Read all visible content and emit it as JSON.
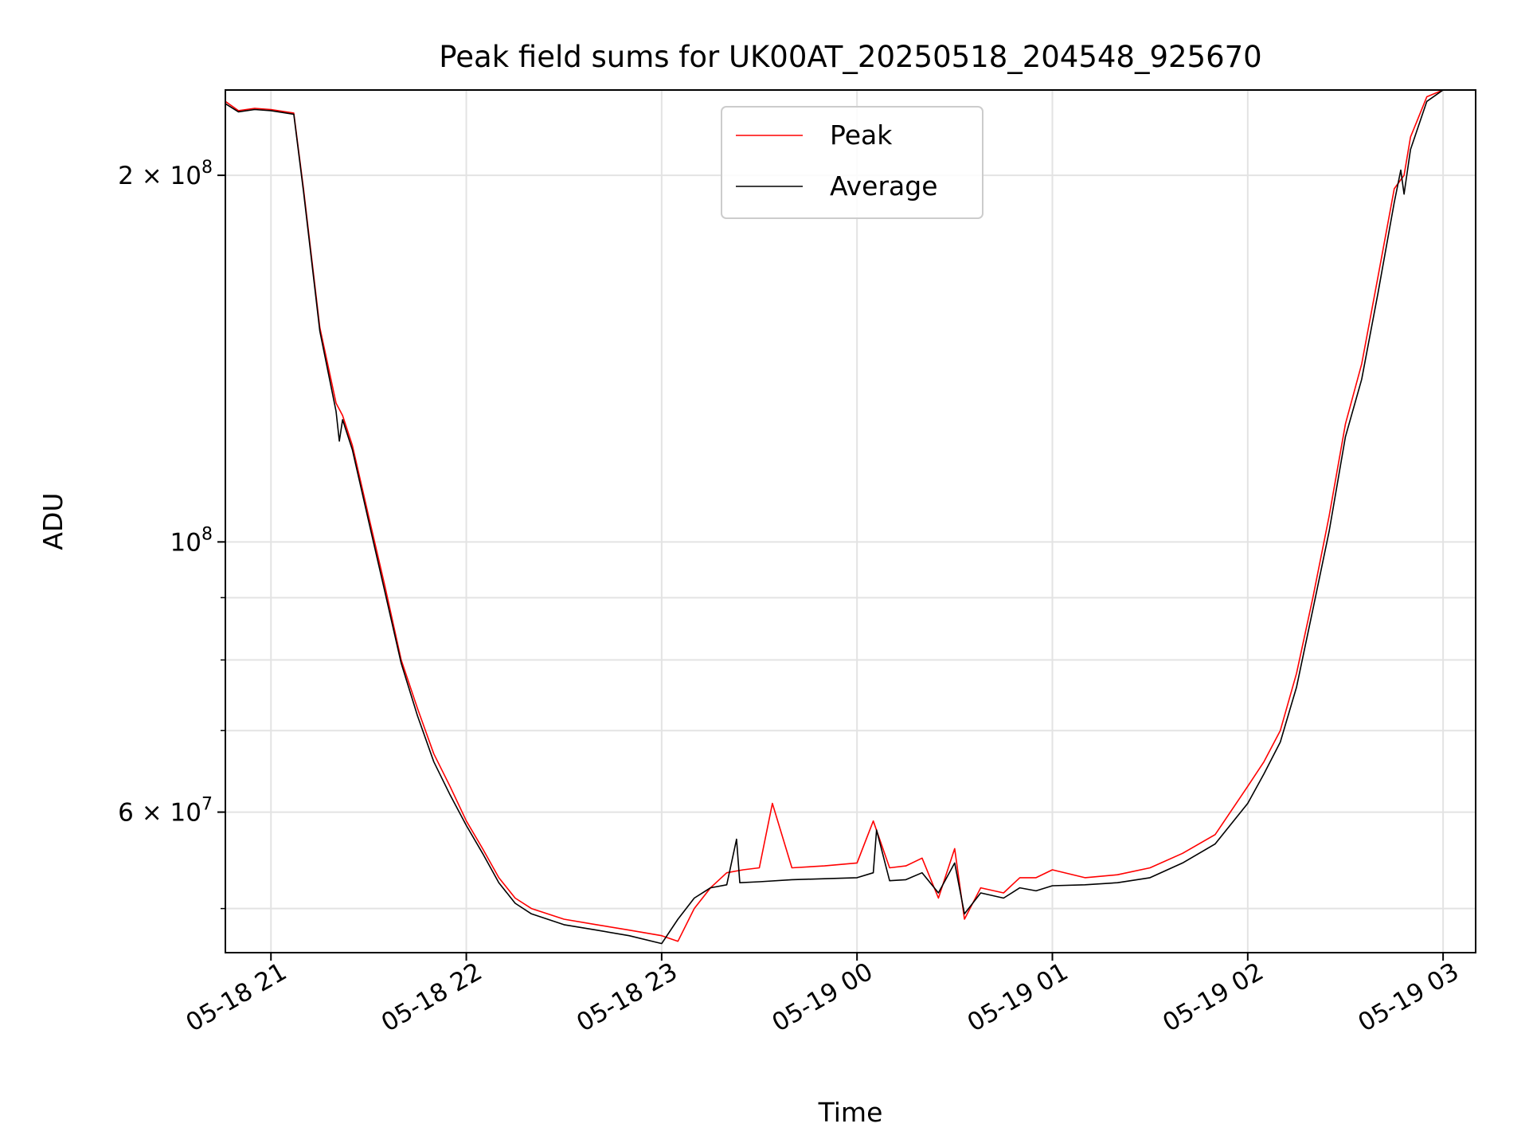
{
  "chart_data": {
    "type": "line",
    "title": "Peak field sums for UK00AT_20250518_204548_925670",
    "xlabel": "Time",
    "ylabel": "ADU",
    "y_scale": "log",
    "grid": true,
    "legend_position": "upper center",
    "xlim": [
      "2025-05-18 20:46",
      "2025-05-19 03:10"
    ],
    "ylim": [
      46000000,
      235000000
    ],
    "x_ticks": [
      {
        "value": "2025-05-18 21:00",
        "label": "05-18 21"
      },
      {
        "value": "2025-05-18 22:00",
        "label": "05-18 22"
      },
      {
        "value": "2025-05-18 23:00",
        "label": "05-18 23"
      },
      {
        "value": "2025-05-19 00:00",
        "label": "05-19 00"
      },
      {
        "value": "2025-05-19 01:00",
        "label": "05-19 01"
      },
      {
        "value": "2025-05-19 02:00",
        "label": "05-19 02"
      },
      {
        "value": "2025-05-19 03:00",
        "label": "05-19 03"
      }
    ],
    "y_major_ticks": [
      {
        "value": 200000000,
        "base": "2 × 10",
        "exp": "8"
      },
      {
        "value": 100000000,
        "base": "10",
        "exp": "8"
      },
      {
        "value": 60000000,
        "base": "6 × 10",
        "exp": "7"
      }
    ],
    "y_minor_ticks": [
      50000000,
      70000000,
      80000000,
      90000000
    ],
    "series": [
      {
        "name": "Peak",
        "color": "#ff0000",
        "x": [
          "2025-05-18 20:46",
          "2025-05-18 20:50",
          "2025-05-18 20:55",
          "2025-05-18 21:00",
          "2025-05-18 21:07",
          "2025-05-18 21:10",
          "2025-05-18 21:15",
          "2025-05-18 21:20",
          "2025-05-18 21:22",
          "2025-05-18 21:25",
          "2025-05-18 21:30",
          "2025-05-18 21:35",
          "2025-05-18 21:40",
          "2025-05-18 21:45",
          "2025-05-18 21:50",
          "2025-05-18 21:55",
          "2025-05-18 22:00",
          "2025-05-18 22:05",
          "2025-05-18 22:10",
          "2025-05-18 22:15",
          "2025-05-18 22:20",
          "2025-05-18 22:30",
          "2025-05-18 22:40",
          "2025-05-18 22:50",
          "2025-05-18 23:00",
          "2025-05-18 23:05",
          "2025-05-18 23:10",
          "2025-05-18 23:15",
          "2025-05-18 23:20",
          "2025-05-18 23:25",
          "2025-05-18 23:30",
          "2025-05-18 23:34",
          "2025-05-18 23:40",
          "2025-05-18 23:50",
          "2025-05-19 00:00",
          "2025-05-19 00:05",
          "2025-05-19 00:10",
          "2025-05-19 00:15",
          "2025-05-19 00:20",
          "2025-05-19 00:25",
          "2025-05-19 00:30",
          "2025-05-19 00:33",
          "2025-05-19 00:38",
          "2025-05-19 00:45",
          "2025-05-19 00:50",
          "2025-05-19 00:55",
          "2025-05-19 01:00",
          "2025-05-19 01:10",
          "2025-05-19 01:20",
          "2025-05-19 01:30",
          "2025-05-19 01:40",
          "2025-05-19 01:50",
          "2025-05-19 02:00",
          "2025-05-19 02:05",
          "2025-05-19 02:10",
          "2025-05-19 02:15",
          "2025-05-19 02:20",
          "2025-05-19 02:25",
          "2025-05-19 02:30",
          "2025-05-19 02:35",
          "2025-05-19 02:40",
          "2025-05-19 02:45",
          "2025-05-19 02:48",
          "2025-05-19 02:50",
          "2025-05-19 02:55",
          "2025-05-19 03:00"
        ],
        "y": [
          230000000,
          226000000,
          227000000,
          226500000,
          225000000,
          195000000,
          150000000,
          130000000,
          127000000,
          120000000,
          105000000,
          92000000,
          80000000,
          73000000,
          67000000,
          63000000,
          59000000,
          56000000,
          53000000,
          51000000,
          50000000,
          49000000,
          48500000,
          48000000,
          47500000,
          47000000,
          50000000,
          52000000,
          53500000,
          53800000,
          54000000,
          61000000,
          54000000,
          54200000,
          54500000,
          59000000,
          54000000,
          54200000,
          55000000,
          51000000,
          56000000,
          49000000,
          52000000,
          51500000,
          53000000,
          53000000,
          53800000,
          53000000,
          53300000,
          54000000,
          55500000,
          57500000,
          63000000,
          66000000,
          70000000,
          78000000,
          90000000,
          105000000,
          125000000,
          140000000,
          165000000,
          195000000,
          200000000,
          215000000,
          232000000,
          235000000
        ]
      },
      {
        "name": "Average",
        "color": "#000000",
        "x": [
          "2025-05-18 20:46",
          "2025-05-18 20:50",
          "2025-05-18 20:55",
          "2025-05-18 21:00",
          "2025-05-18 21:07",
          "2025-05-18 21:10",
          "2025-05-18 21:15",
          "2025-05-18 21:20",
          "2025-05-18 21:21",
          "2025-05-18 21:22",
          "2025-05-18 21:25",
          "2025-05-18 21:30",
          "2025-05-18 21:35",
          "2025-05-18 21:40",
          "2025-05-18 21:45",
          "2025-05-18 21:50",
          "2025-05-18 21:55",
          "2025-05-18 22:00",
          "2025-05-18 22:05",
          "2025-05-18 22:10",
          "2025-05-18 22:15",
          "2025-05-18 22:20",
          "2025-05-18 22:30",
          "2025-05-18 22:40",
          "2025-05-18 22:50",
          "2025-05-18 23:00",
          "2025-05-18 23:05",
          "2025-05-18 23:10",
          "2025-05-18 23:15",
          "2025-05-18 23:20",
          "2025-05-18 23:23",
          "2025-05-18 23:24",
          "2025-05-18 23:30",
          "2025-05-18 23:40",
          "2025-05-18 23:50",
          "2025-05-19 00:00",
          "2025-05-19 00:05",
          "2025-05-19 00:06",
          "2025-05-19 00:10",
          "2025-05-19 00:15",
          "2025-05-19 00:20",
          "2025-05-19 00:25",
          "2025-05-19 00:30",
          "2025-05-19 00:33",
          "2025-05-19 00:38",
          "2025-05-19 00:45",
          "2025-05-19 00:50",
          "2025-05-19 00:55",
          "2025-05-19 01:00",
          "2025-05-19 01:10",
          "2025-05-19 01:20",
          "2025-05-19 01:30",
          "2025-05-19 01:40",
          "2025-05-19 01:50",
          "2025-05-19 02:00",
          "2025-05-19 02:05",
          "2025-05-19 02:10",
          "2025-05-19 02:15",
          "2025-05-19 02:20",
          "2025-05-19 02:25",
          "2025-05-19 02:30",
          "2025-05-19 02:35",
          "2025-05-19 02:40",
          "2025-05-19 02:45",
          "2025-05-19 02:47",
          "2025-05-19 02:48",
          "2025-05-19 02:50",
          "2025-05-19 02:55",
          "2025-05-19 03:00"
        ],
        "y": [
          229000000,
          225500000,
          226500000,
          226000000,
          224500000,
          194000000,
          149000000,
          128000000,
          121000000,
          126000000,
          119000000,
          104000000,
          91000000,
          79500000,
          72000000,
          66000000,
          62000000,
          58500000,
          55500000,
          52500000,
          50500000,
          49500000,
          48500000,
          48000000,
          47500000,
          46800000,
          49000000,
          51000000,
          52000000,
          52300000,
          57000000,
          52500000,
          52600000,
          52800000,
          52900000,
          53000000,
          53500000,
          58000000,
          52700000,
          52800000,
          53500000,
          51500000,
          54500000,
          49500000,
          51500000,
          51000000,
          52000000,
          51700000,
          52200000,
          52300000,
          52500000,
          53000000,
          54500000,
          56500000,
          61000000,
          64500000,
          68500000,
          76000000,
          88000000,
          102000000,
          122000000,
          136000000,
          160000000,
          190000000,
          202000000,
          193000000,
          210000000,
          230000000,
          235000000
        ]
      }
    ]
  }
}
